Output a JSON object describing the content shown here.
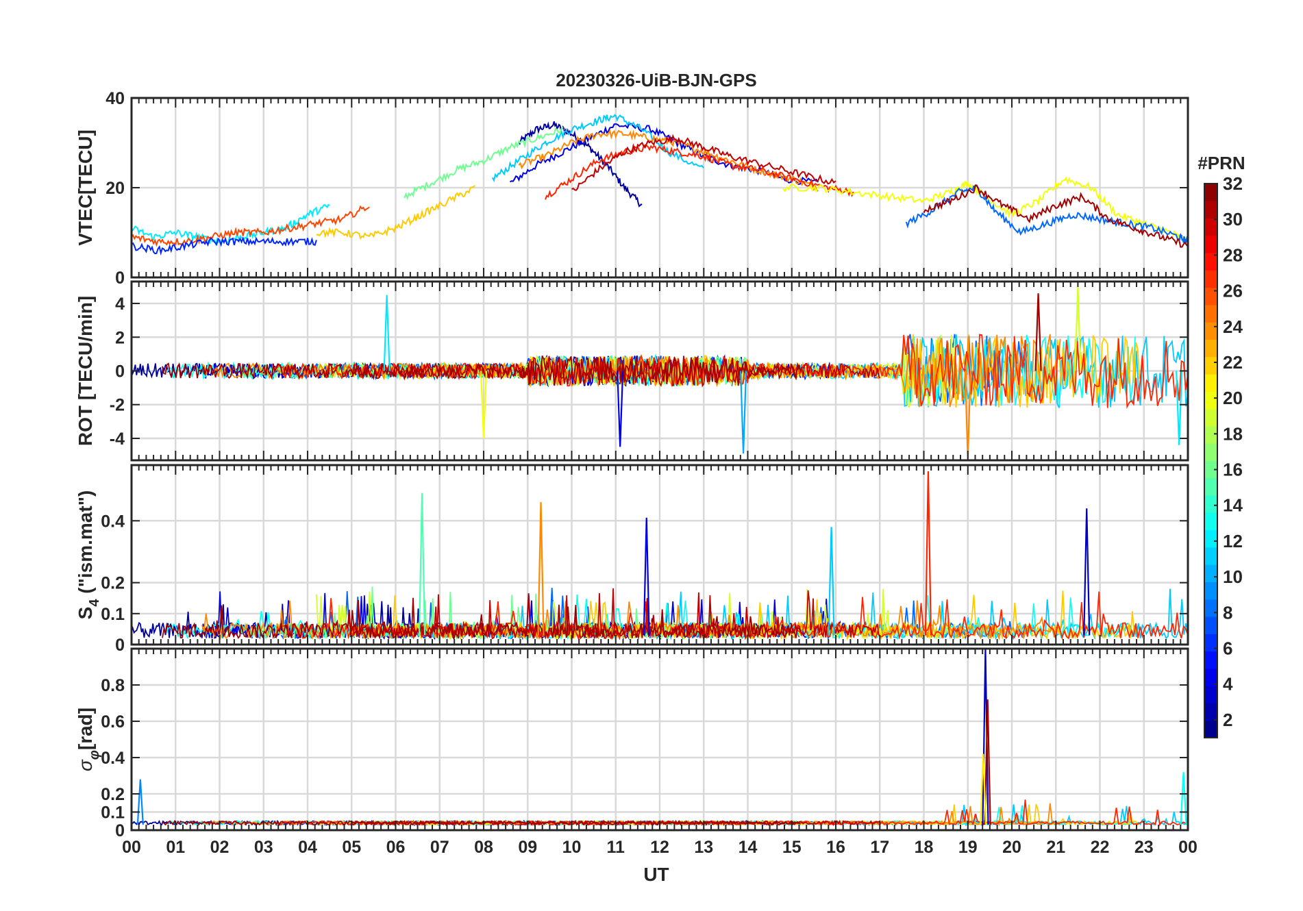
{
  "chart_data": {
    "type": "line",
    "title": "20230326-UiB-BJN-GPS",
    "xlabel": "UT",
    "x_tick_labels": [
      "00",
      "01",
      "02",
      "03",
      "04",
      "05",
      "06",
      "07",
      "08",
      "09",
      "10",
      "11",
      "12",
      "13",
      "14",
      "15",
      "16",
      "17",
      "18",
      "19",
      "20",
      "21",
      "22",
      "23",
      "00"
    ],
    "xlim_hours": [
      0,
      24
    ],
    "colorbar": {
      "label": "#PRN",
      "range": [
        1,
        32
      ],
      "tick_labels": [
        "32",
        "30",
        "28",
        "26",
        "24",
        "22",
        "20",
        "18",
        "16",
        "14",
        "12",
        "10",
        "8",
        "6",
        "4",
        "2"
      ],
      "tick_values": [
        32,
        30,
        28,
        26,
        24,
        22,
        20,
        18,
        16,
        14,
        12,
        10,
        8,
        6,
        4,
        2
      ]
    },
    "panels": [
      {
        "ylabel": "VTEC[TECU]",
        "ylim": [
          0,
          40
        ],
        "ytick_labels": [
          "0",
          "20",
          "40"
        ],
        "ytick_values": [
          0,
          20,
          40
        ],
        "series": [
          {
            "prn": 2,
            "x": [
              8.8,
              9.2,
              9.6,
              10.0,
              10.4,
              10.8,
              11.2,
              11.6
            ],
            "y": [
              30,
              33,
              34,
              32,
              29,
              25,
              20,
              16
            ]
          },
          {
            "prn": 4,
            "x": [
              8.6,
              9.2,
              9.8,
              10.4,
              11.0,
              11.8,
              12.4,
              13.0,
              13.6,
              14.2,
              14.8,
              15.6
            ],
            "y": [
              21,
              25,
              28,
              31,
              34,
              33,
              30,
              27,
              25,
              24,
              22,
              21
            ]
          },
          {
            "prn": 11,
            "x": [
              8.2,
              8.8,
              9.4,
              10.0,
              10.6,
              11.0,
              11.6,
              12.2,
              13.0
            ],
            "y": [
              22,
              26,
              30,
              33,
              35,
              36,
              33,
              28,
              24
            ]
          },
          {
            "prn": 16,
            "x": [
              6.2,
              6.8,
              7.4,
              8.0,
              8.6,
              9.2,
              9.8
            ],
            "y": [
              18,
              21,
              24,
              26,
              29,
              31,
              33
            ]
          },
          {
            "prn": 24,
            "x": [
              8.8,
              9.4,
              10.0,
              10.6,
              11.2,
              11.8,
              12.4,
              13.0,
              13.6,
              14.2,
              15.0,
              15.6
            ],
            "y": [
              25,
              27,
              30,
              32,
              32,
              31,
              30,
              28,
              26,
              24,
              22,
              20
            ]
          },
          {
            "prn": 27,
            "x": [
              9.4,
              10.0,
              10.6,
              11.2,
              11.8,
              12.4,
              13.0,
              13.6,
              14.2,
              15.0,
              15.8,
              16.4
            ],
            "y": [
              18,
              22,
              26,
              28,
              29,
              28,
              27,
              25,
              24,
              22,
              20,
              19
            ]
          },
          {
            "prn": 30,
            "x": [
              10.0,
              10.6,
              11.2,
              11.8,
              12.4,
              13.0,
              13.6,
              14.4,
              15.2,
              16.0
            ],
            "y": [
              19,
              24,
              28,
              30,
              31,
              29,
              27,
              25,
              23,
              21
            ]
          },
          {
            "prn": 20,
            "x": [
              14.8,
              15.6,
              16.4,
              17.2,
              18.0,
              18.6,
              19.0,
              19.4,
              20.0,
              20.6,
              21.2,
              21.8,
              22.4,
              23.0,
              23.6,
              24.0
            ],
            "y": [
              20,
              20,
              19,
              18,
              17,
              19,
              21,
              18,
              14,
              17,
              22,
              20,
              14,
              12,
              10,
              8
            ]
          },
          {
            "prn": 8,
            "x": [
              17.6,
              18.2,
              18.8,
              19.2,
              19.6,
              20.2,
              20.8,
              21.4,
              22.0,
              22.6,
              23.2,
              23.8,
              24.0
            ],
            "y": [
              12,
              15,
              19,
              20,
              15,
              10,
              12,
              14,
              13,
              12,
              11,
              9,
              8
            ]
          },
          {
            "prn": 31,
            "x": [
              18.0,
              18.6,
              19.2,
              19.8,
              20.4,
              21.0,
              21.6,
              22.2,
              22.8,
              23.4,
              24.0
            ],
            "y": [
              15,
              17,
              20,
              16,
              13,
              16,
              18,
              13,
              11,
              9,
              7
            ]
          },
          {
            "prn": 12,
            "x": [
              0.0,
              0.5,
              1.0,
              1.5,
              2.0,
              2.5,
              3.0,
              3.5,
              4.0,
              4.5
            ],
            "y": [
              11,
              9,
              10,
              9,
              8,
              9,
              10,
              11,
              14,
              16
            ]
          },
          {
            "prn": 26,
            "x": [
              0.0,
              0.6,
              1.2,
              1.8,
              2.4,
              3.0,
              3.6,
              4.2,
              4.8,
              5.4
            ],
            "y": [
              9,
              8,
              8,
              9,
              10,
              10,
              11,
              12,
              13,
              16
            ]
          },
          {
            "prn": 6,
            "x": [
              0.0,
              0.6,
              1.2,
              1.8,
              2.4,
              3.0,
              3.6,
              4.2
            ],
            "y": [
              7,
              6,
              7,
              8,
              8,
              8,
              8,
              8
            ]
          },
          {
            "prn": 22,
            "x": [
              4.2,
              4.8,
              5.4,
              6.0,
              6.6,
              7.2,
              7.8
            ],
            "y": [
              10,
              10,
              9,
              11,
              14,
              17,
              20
            ]
          }
        ]
      },
      {
        "ylabel": "ROT [TECU/min]",
        "ylim": [
          -5.3,
          5.3
        ],
        "ytick_labels": [
          "-4",
          "-2",
          "0",
          "2",
          "4"
        ],
        "ytick_values": [
          -4,
          -2,
          0,
          2,
          4
        ],
        "peaks": [
          {
            "prn": 12,
            "x": 5.8,
            "y": 4.5
          },
          {
            "prn": 20,
            "x": 8.0,
            "y": -4.0
          },
          {
            "prn": 4,
            "x": 11.1,
            "y": -4.5
          },
          {
            "prn": 10,
            "x": 13.9,
            "y": -4.9
          },
          {
            "prn": 31,
            "x": 20.6,
            "y": 4.6
          },
          {
            "prn": 19,
            "x": 21.5,
            "y": 5.0
          },
          {
            "prn": 24,
            "x": 19.0,
            "y": -5.2
          },
          {
            "prn": 12,
            "x": 23.8,
            "y": -4.4
          }
        ]
      },
      {
        "ylabel": "S4 (\"ism.mat\")",
        "ylabel_main": "S",
        "ylabel_sub": "4",
        "ylabel_rest": " (\"ism.mat\")",
        "ylim": [
          0,
          0.58
        ],
        "ytick_labels": [
          "0",
          "0.1",
          "0.2",
          "0.4"
        ],
        "ytick_values": [
          0,
          0.1,
          0.2,
          0.4
        ],
        "peaks": [
          {
            "prn": 15,
            "x": 6.6,
            "y": 0.49
          },
          {
            "prn": 24,
            "x": 9.3,
            "y": 0.46
          },
          {
            "prn": 4,
            "x": 11.7,
            "y": 0.41
          },
          {
            "prn": 27,
            "x": 18.1,
            "y": 0.56
          },
          {
            "prn": 11,
            "x": 15.9,
            "y": 0.38
          },
          {
            "prn": 3,
            "x": 21.7,
            "y": 0.44
          }
        ]
      },
      {
        "ylabel": "σφ[rad]",
        "ylabel_main": "σ",
        "ylabel_sub": "φ",
        "ylabel_rest": "[rad]",
        "ylim": [
          0,
          1.0
        ],
        "ytick_labels": [
          "0",
          "0.1",
          "0.2",
          "0.4",
          "0.6",
          "0.8"
        ],
        "ytick_values": [
          0,
          0.1,
          0.2,
          0.4,
          0.6,
          0.8
        ],
        "peaks": [
          {
            "prn": 3,
            "x": 19.4,
            "y": 1.0
          },
          {
            "prn": 31,
            "x": 19.45,
            "y": 0.72
          },
          {
            "prn": 21,
            "x": 19.35,
            "y": 0.42
          },
          {
            "prn": 9,
            "x": 0.2,
            "y": 0.28
          },
          {
            "prn": 13,
            "x": 23.9,
            "y": 0.32
          }
        ]
      }
    ]
  }
}
